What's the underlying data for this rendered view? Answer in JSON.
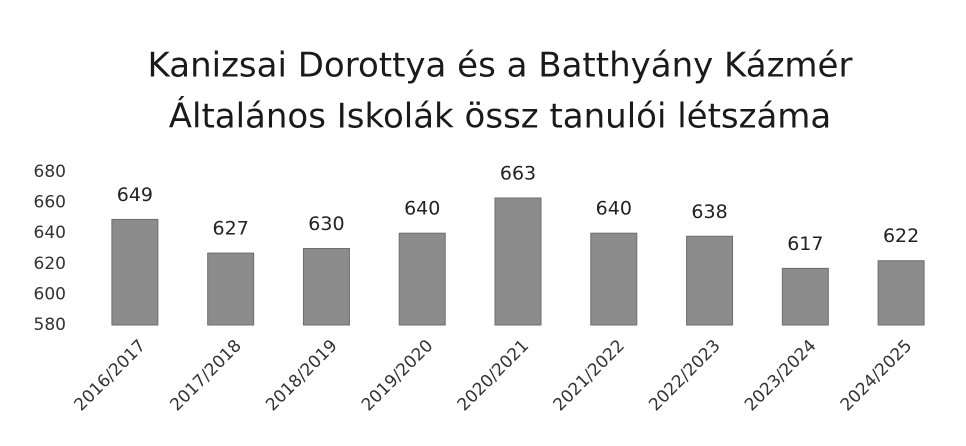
{
  "chart_data": {
    "type": "bar",
    "title": [
      "Kanizsai Dorottya és a Batthyány Kázmér",
      "Általános Iskolák össz tanulói létszáma"
    ],
    "categories": [
      "2016/2017",
      "2017/2018",
      "2018/2019",
      "2019/2020",
      "2020/2021",
      "2021/2022",
      "2022/2023",
      "2023/2024",
      "2024/2025"
    ],
    "values": [
      649,
      627,
      630,
      640,
      663,
      640,
      638,
      617,
      622
    ],
    "color": "#8c8c8c",
    "ylim": [
      580,
      680
    ],
    "yticks": [
      580,
      600,
      620,
      640,
      660,
      680
    ],
    "grid": false
  }
}
